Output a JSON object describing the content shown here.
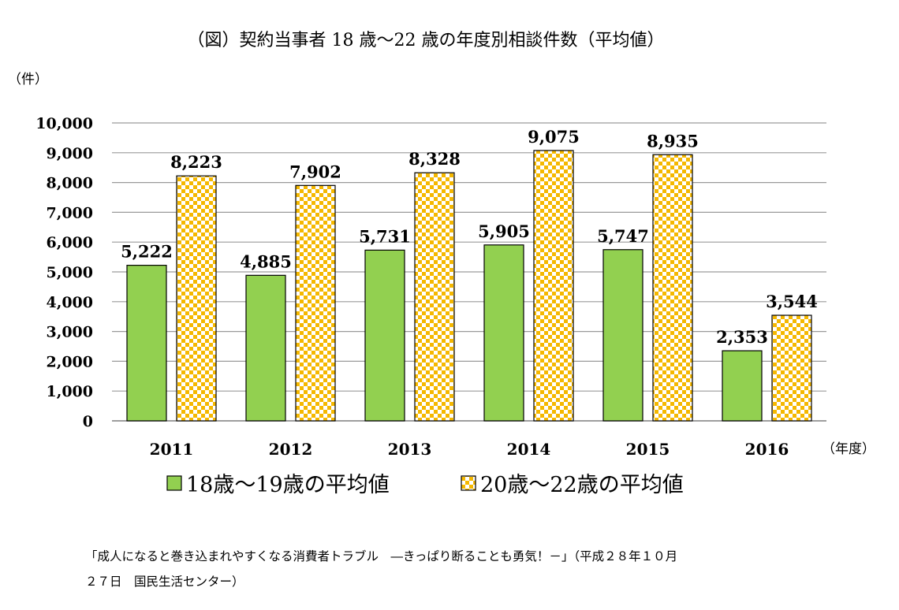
{
  "chart_data": {
    "type": "bar",
    "title": "（図）契約当事者 18 歳～22 歳の年度別相談件数（平均値）",
    "ylabel": "（件）",
    "xlabel": "（年度）",
    "categories": [
      "2011",
      "2012",
      "2013",
      "2014",
      "2015",
      "2016"
    ],
    "series": [
      {
        "name": "18歳～19歳の平均値",
        "values": [
          5222,
          4885,
          5731,
          5905,
          5747,
          2353
        ],
        "labels": [
          "5,222",
          "4,885",
          "5,731",
          "5,905",
          "5,747",
          "2,353"
        ],
        "color": "#92d050",
        "pattern": "solid"
      },
      {
        "name": "20歳～22歳の平均値",
        "values": [
          8223,
          7902,
          8328,
          9075,
          8935,
          3544
        ],
        "labels": [
          "8,223",
          "7,902",
          "8,328",
          "9,075",
          "8,935",
          "3,544"
        ],
        "color": "#f5b800",
        "pattern": "checker"
      }
    ],
    "ylim": [
      0,
      10000
    ],
    "yticks": [
      0,
      1000,
      2000,
      3000,
      4000,
      5000,
      6000,
      7000,
      8000,
      9000,
      10000
    ],
    "ytick_labels": [
      "0",
      "1,000",
      "2,000",
      "3,000",
      "4,000",
      "5,000",
      "6,000",
      "7,000",
      "8,000",
      "9,000",
      "10,000"
    ],
    "grid": true,
    "legend_position": "bottom"
  },
  "source": {
    "line1": "「成人になると巻き込まれやすくなる消費者トラブル　―きっぱり断ることも勇気！－」（平成２８年１０月",
    "line2": "２７日　国民生活センター）"
  }
}
